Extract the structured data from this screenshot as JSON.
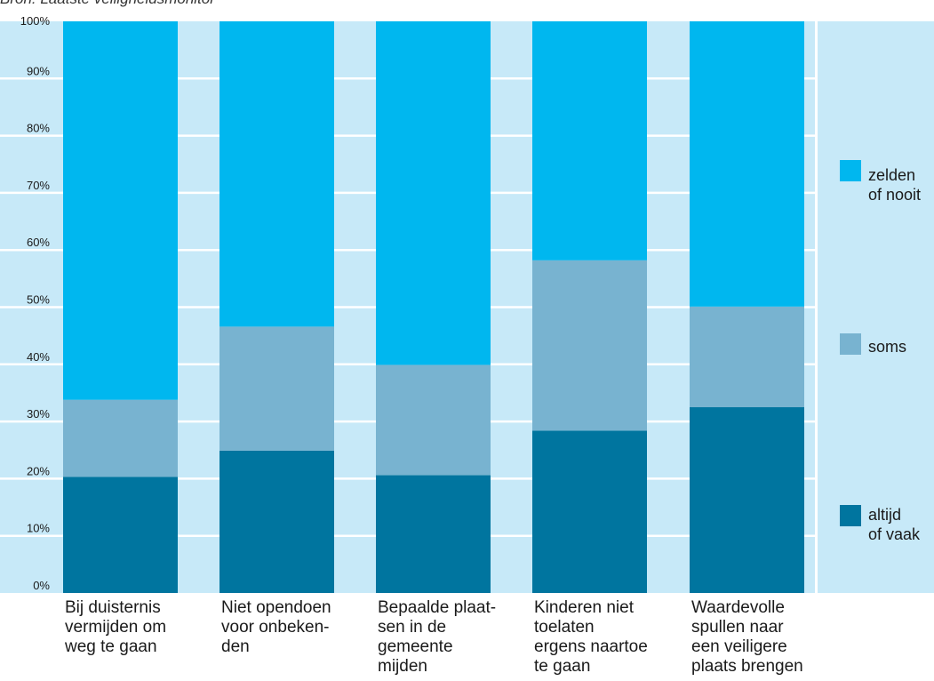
{
  "source": "Bron: Laatste veiligheidsmonitor",
  "colors": {
    "plot_background": "#c7e9f8",
    "gridline": "#ffffff",
    "zelden_of_nooit": "#00b7ef",
    "soms": "#78b3d0",
    "altijd_of_vaak": "#00759f",
    "text": "#1a1a1a"
  },
  "chart_data": {
    "type": "bar",
    "stacked": true,
    "normalized_percent": true,
    "categories": [
      "Bij duisternis vermijden om weg te gaan",
      "Niet opendoen voor onbekenden",
      "Bepaalde plaatsen in de gemeente mijden",
      "Kinderen niet toelaten ergens naartoe te gaan",
      "Waardevolle spullen naar een veiligere plaats brengen"
    ],
    "category_label_lines": [
      [
        "Bij duisternis",
        "vermijden om",
        "weg te gaan"
      ],
      [
        "Niet opendoen",
        "voor onbeken-",
        "den"
      ],
      [
        "Bepaalde plaat-",
        "sen in de",
        "gemeente",
        "mijden"
      ],
      [
        "Kinderen niet",
        "toelaten",
        "ergens naartoe",
        "te gaan"
      ],
      [
        "Waardevolle",
        "spullen naar",
        "een veiligere",
        "plaats brengen"
      ]
    ],
    "series": [
      {
        "key": "altijd_of_vaak",
        "name_lines": [
          "altijd",
          "of vaak"
        ],
        "values": [
          20.3,
          24.9,
          20.6,
          28.4,
          32.5
        ]
      },
      {
        "key": "soms",
        "name_lines": [
          "soms"
        ],
        "values": [
          13.5,
          21.7,
          19.3,
          29.8,
          17.6
        ]
      },
      {
        "key": "zelden_of_nooit",
        "name_lines": [
          "zelden",
          "of nooit"
        ],
        "values": [
          66.2,
          53.4,
          60.1,
          41.8,
          49.9
        ]
      }
    ],
    "y_ticks": [
      "0%",
      "10%",
      "20%",
      "30%",
      "40%",
      "50%",
      "60%",
      "70%",
      "80%",
      "90%",
      "100%"
    ],
    "ylim": [
      0,
      100
    ],
    "grid": true,
    "legend_position": "right"
  }
}
